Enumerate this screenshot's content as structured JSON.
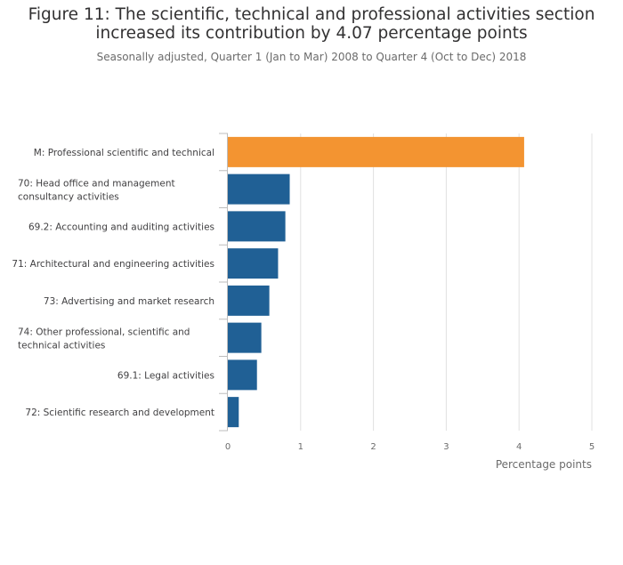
{
  "header": {
    "title_line1": "Figure 11: The scientific, technical and professional activities section",
    "title_line2": "increased its contribution by 4.07 percentage points",
    "subtitle": "Seasonally adjusted, Quarter 1 (Jan to Mar) 2008 to Quarter 4 (Oct to Dec) 2018"
  },
  "chart_data": {
    "type": "bar",
    "orientation": "horizontal",
    "categories": [
      "M: Professional scientific and technical",
      "70: Head office and management consultancy activities",
      "69.2: Accounting and auditing activities",
      "71: Architectural and engineering activities",
      "73: Advertising and market research",
      "74: Other professional, scientific and technical activities",
      "69.1: Legal activities",
      "72: Scientific research and development"
    ],
    "category_label_lines": [
      [
        "M: Professional scientific and technical"
      ],
      [
        "70: Head office and management",
        "consultancy activities"
      ],
      [
        "69.2: Accounting and auditing activities"
      ],
      [
        "71: Architectural and engineering activities"
      ],
      [
        "73: Advertising and market research"
      ],
      [
        "74: Other professional, scientific and",
        "technical activities"
      ],
      [
        "69.1: Legal activities"
      ],
      [
        "72: Scientific research and development"
      ]
    ],
    "values": [
      4.07,
      0.85,
      0.79,
      0.69,
      0.57,
      0.46,
      0.4,
      0.15
    ],
    "xlabel": "Percentage points",
    "xlim": [
      0,
      5
    ],
    "xticks": [
      0,
      1,
      2,
      3,
      4,
      5
    ],
    "grid": true,
    "colors": {
      "highlight": "#f39431",
      "default": "#206095",
      "grid": "#e0e0e0",
      "axis": "#bdbdbd"
    }
  }
}
